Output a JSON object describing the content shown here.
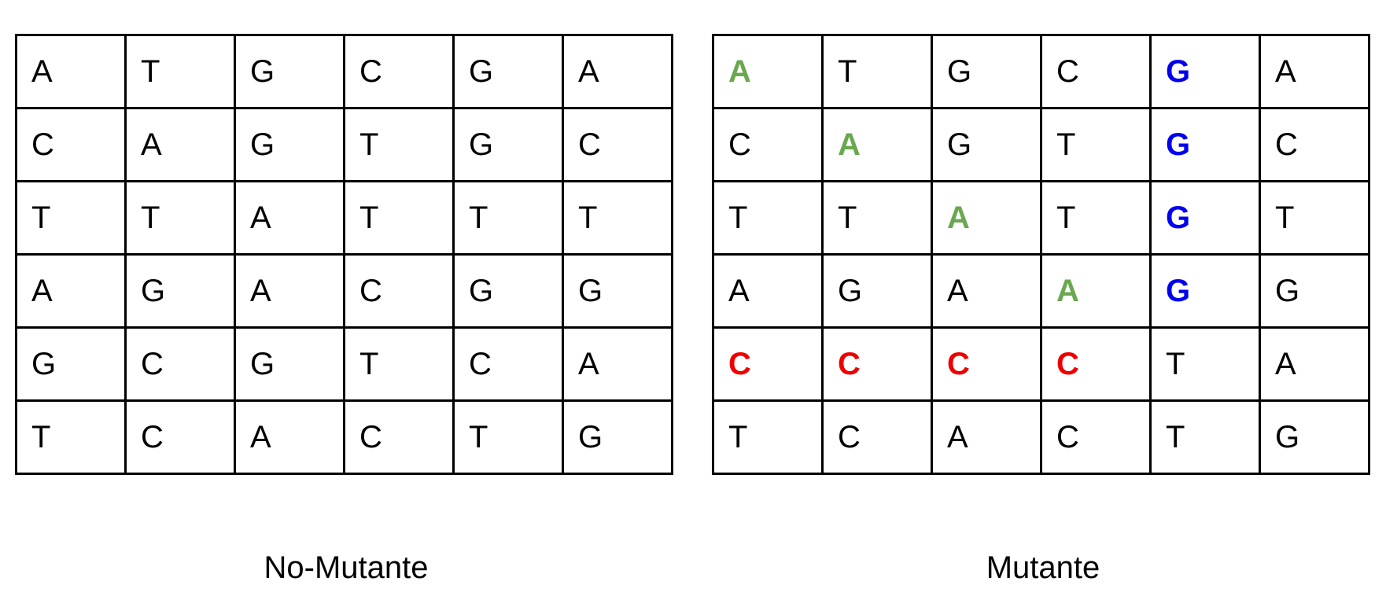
{
  "colors": {
    "default": "#000000",
    "green": "#6aa84f",
    "blue": "#0000ee",
    "red": "#ee0000"
  },
  "left_grid": {
    "caption": "No-Mutante",
    "rows": [
      [
        "A",
        "T",
        "G",
        "C",
        "G",
        "A"
      ],
      [
        "C",
        "A",
        "G",
        "T",
        "G",
        "C"
      ],
      [
        "T",
        "T",
        "A",
        "T",
        "T",
        "T"
      ],
      [
        "A",
        "G",
        "A",
        "C",
        "G",
        "G"
      ],
      [
        "G",
        "C",
        "G",
        "T",
        "C",
        "A"
      ],
      [
        "T",
        "C",
        "A",
        "C",
        "T",
        "G"
      ]
    ]
  },
  "right_grid": {
    "caption": "Mutante",
    "rows": [
      [
        "A",
        "T",
        "G",
        "C",
        "G",
        "A"
      ],
      [
        "C",
        "A",
        "G",
        "T",
        "G",
        "C"
      ],
      [
        "T",
        "T",
        "A",
        "T",
        "G",
        "T"
      ],
      [
        "A",
        "G",
        "A",
        "A",
        "G",
        "G"
      ],
      [
        "C",
        "C",
        "C",
        "C",
        "T",
        "A"
      ],
      [
        "T",
        "C",
        "A",
        "C",
        "T",
        "G"
      ]
    ],
    "highlights": [
      [
        "green",
        "default",
        "default",
        "default",
        "blue",
        "default"
      ],
      [
        "default",
        "green",
        "default",
        "default",
        "blue",
        "default"
      ],
      [
        "default",
        "default",
        "green",
        "default",
        "blue",
        "default"
      ],
      [
        "default",
        "default",
        "default",
        "green",
        "blue",
        "default"
      ],
      [
        "red",
        "red",
        "red",
        "red",
        "default",
        "default"
      ],
      [
        "default",
        "default",
        "default",
        "default",
        "default",
        "default"
      ]
    ]
  }
}
